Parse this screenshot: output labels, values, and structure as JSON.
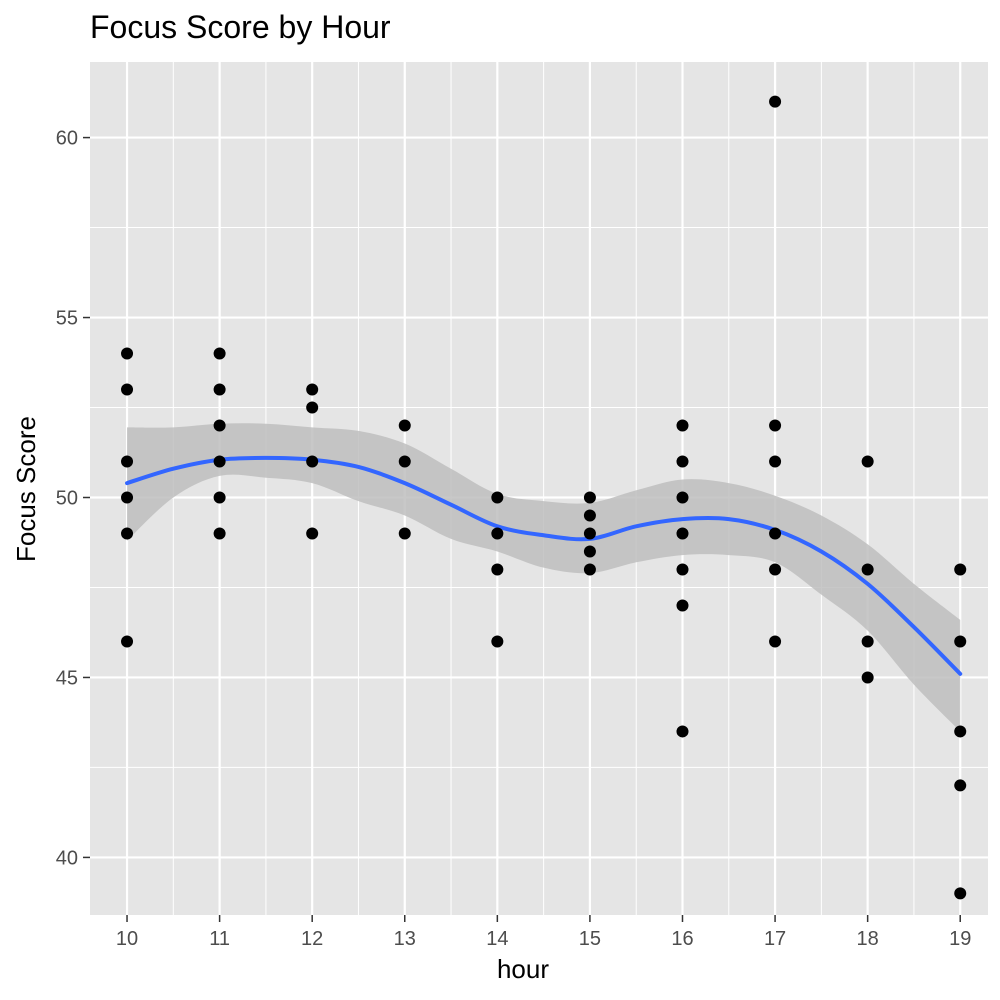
{
  "chart_data": {
    "type": "scatter",
    "title": "Focus Score by Hour",
    "xlabel": "hour",
    "ylabel": "Focus Score",
    "xlim": [
      9.6,
      19.3
    ],
    "ylim": [
      38.4,
      62.1
    ],
    "x_ticks": [
      10,
      11,
      12,
      13,
      14,
      15,
      16,
      17,
      18,
      19
    ],
    "y_ticks": [
      40,
      45,
      50,
      55,
      60
    ],
    "grid": true,
    "legend": "none",
    "colors": {
      "panel": "#e5e5e5",
      "grid": "#ffffff",
      "points": "#000000",
      "smooth_line": "#3366ff",
      "ribbon": "#bebebe"
    },
    "points": [
      {
        "x": 10,
        "y": 54
      },
      {
        "x": 10,
        "y": 53
      },
      {
        "x": 10,
        "y": 51
      },
      {
        "x": 10,
        "y": 50
      },
      {
        "x": 10,
        "y": 49
      },
      {
        "x": 10,
        "y": 46
      },
      {
        "x": 11,
        "y": 54
      },
      {
        "x": 11,
        "y": 53
      },
      {
        "x": 11,
        "y": 52
      },
      {
        "x": 11,
        "y": 51
      },
      {
        "x": 11,
        "y": 50
      },
      {
        "x": 11,
        "y": 49
      },
      {
        "x": 12,
        "y": 53
      },
      {
        "x": 12,
        "y": 52.5
      },
      {
        "x": 12,
        "y": 51
      },
      {
        "x": 12,
        "y": 49
      },
      {
        "x": 13,
        "y": 52
      },
      {
        "x": 13,
        "y": 51
      },
      {
        "x": 13,
        "y": 49
      },
      {
        "x": 14,
        "y": 50
      },
      {
        "x": 14,
        "y": 49
      },
      {
        "x": 14,
        "y": 48
      },
      {
        "x": 14,
        "y": 46
      },
      {
        "x": 15,
        "y": 50
      },
      {
        "x": 15,
        "y": 49.5
      },
      {
        "x": 15,
        "y": 49
      },
      {
        "x": 15,
        "y": 48.5
      },
      {
        "x": 15,
        "y": 48
      },
      {
        "x": 16,
        "y": 52
      },
      {
        "x": 16,
        "y": 51
      },
      {
        "x": 16,
        "y": 50
      },
      {
        "x": 16,
        "y": 49
      },
      {
        "x": 16,
        "y": 48
      },
      {
        "x": 16,
        "y": 47
      },
      {
        "x": 16,
        "y": 43.5
      },
      {
        "x": 17,
        "y": 61
      },
      {
        "x": 17,
        "y": 52
      },
      {
        "x": 17,
        "y": 51
      },
      {
        "x": 17,
        "y": 49
      },
      {
        "x": 17,
        "y": 48
      },
      {
        "x": 17,
        "y": 46
      },
      {
        "x": 18,
        "y": 51
      },
      {
        "x": 18,
        "y": 48
      },
      {
        "x": 18,
        "y": 46
      },
      {
        "x": 18,
        "y": 45
      },
      {
        "x": 19,
        "y": 48
      },
      {
        "x": 19,
        "y": 46
      },
      {
        "x": 19,
        "y": 43.5
      },
      {
        "x": 19,
        "y": 42
      },
      {
        "x": 19,
        "y": 39
      }
    ],
    "smooth": {
      "x": [
        10,
        10.5,
        11,
        11.5,
        12,
        12.5,
        13,
        13.5,
        14,
        14.5,
        15,
        15.5,
        16,
        16.5,
        17,
        17.5,
        18,
        18.5,
        19
      ],
      "y": [
        50.4,
        50.8,
        51.05,
        51.1,
        51.05,
        50.85,
        50.4,
        49.8,
        49.2,
        48.95,
        48.85,
        49.2,
        49.4,
        49.4,
        49.1,
        48.5,
        47.6,
        46.4,
        45.1
      ],
      "lower": [
        48.8,
        50.0,
        50.6,
        50.55,
        50.4,
        49.9,
        49.5,
        48.85,
        48.5,
        48.05,
        47.9,
        48.2,
        48.4,
        48.4,
        48.2,
        47.3,
        46.3,
        44.8,
        43.5
      ],
      "upper": [
        51.95,
        51.95,
        52.05,
        52.05,
        51.95,
        51.85,
        51.5,
        50.8,
        50.1,
        49.9,
        49.85,
        50.2,
        50.5,
        50.4,
        50.05,
        49.5,
        48.7,
        47.6,
        46.6
      ]
    }
  }
}
